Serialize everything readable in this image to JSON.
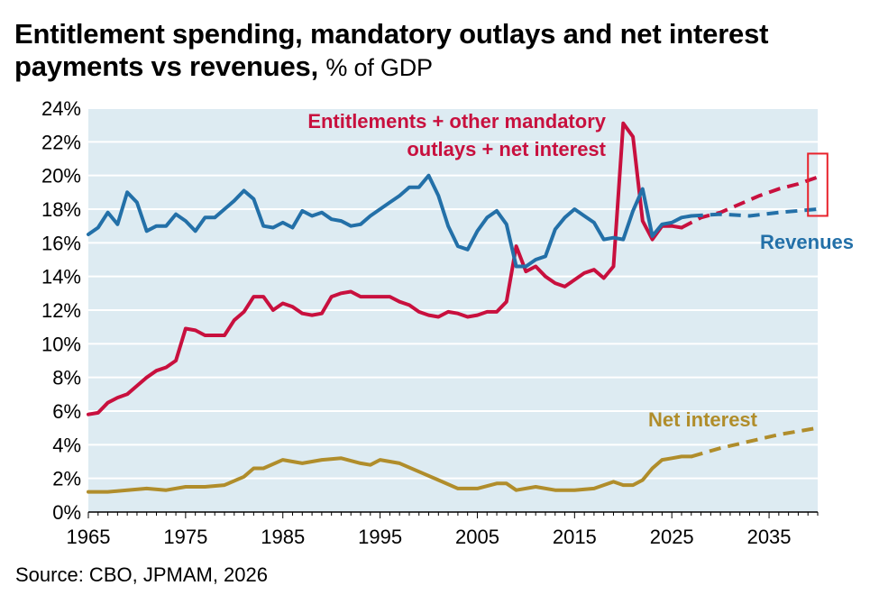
{
  "title": {
    "bold_part": "Entitlement spending, mandatory outlays and net interest payments vs revenues,",
    "unit_part": "% of GDP"
  },
  "source": "Source: CBO, JPMAM, 2026",
  "colors": {
    "plot_background": "#ddebf2",
    "gridline": "#ffffff",
    "entitlements": "#c8103e",
    "revenues": "#2370a8",
    "net_interest": "#b08d2b",
    "highlight_box": "#e8222b"
  },
  "chart_data": {
    "type": "line",
    "title": "Entitlement spending, mandatory outlays and net interest payments vs revenues, % of GDP",
    "xlim": [
      1965,
      2040
    ],
    "ylim": [
      0,
      24
    ],
    "x_ticks": [
      1965,
      1975,
      1985,
      1995,
      2005,
      2015,
      2025,
      2035
    ],
    "y_ticks": [
      "0%",
      "2%",
      "4%",
      "6%",
      "8%",
      "10%",
      "12%",
      "14%",
      "16%",
      "18%",
      "20%",
      "22%",
      "24%"
    ],
    "grid": true,
    "legend": "inline labels",
    "series": [
      {
        "name": "Entitlements + other mandatory outlays + net interest",
        "label_lines": [
          "Entitlements + other mandatory",
          "outlays + net interest"
        ],
        "color": "#c8103e",
        "x": [
          1965,
          1966,
          1967,
          1968,
          1969,
          1970,
          1971,
          1972,
          1973,
          1974,
          1975,
          1976,
          1977,
          1978,
          1979,
          1980,
          1981,
          1982,
          1983,
          1984,
          1985,
          1986,
          1987,
          1988,
          1989,
          1990,
          1991,
          1992,
          1993,
          1994,
          1995,
          1996,
          1997,
          1998,
          1999,
          2000,
          2001,
          2002,
          2003,
          2004,
          2005,
          2006,
          2007,
          2008,
          2009,
          2010,
          2011,
          2012,
          2013,
          2014,
          2015,
          2016,
          2017,
          2018,
          2019,
          2020,
          2021,
          2022,
          2023,
          2024,
          2025,
          2026
        ],
        "y": [
          5.8,
          5.9,
          6.5,
          6.8,
          7.0,
          7.5,
          8.0,
          8.4,
          8.6,
          9.0,
          10.9,
          10.8,
          10.5,
          10.5,
          10.5,
          11.4,
          11.9,
          12.8,
          12.8,
          12.0,
          12.4,
          12.2,
          11.8,
          11.7,
          11.8,
          12.8,
          13.0,
          13.1,
          12.8,
          12.8,
          12.8,
          12.8,
          12.5,
          12.3,
          11.9,
          11.7,
          11.6,
          11.9,
          11.8,
          11.6,
          11.7,
          11.9,
          11.9,
          12.5,
          15.8,
          14.3,
          14.6,
          14.0,
          13.6,
          13.4,
          13.8,
          14.2,
          14.4,
          13.9,
          14.6,
          23.1,
          22.3,
          17.3,
          16.2,
          17.0,
          17.0,
          16.9
        ],
        "projection": {
          "x": [
            2026,
            2028,
            2030,
            2032,
            2034,
            2036,
            2038,
            2040
          ],
          "y": [
            16.9,
            17.5,
            17.8,
            18.3,
            18.8,
            19.2,
            19.5,
            19.9
          ]
        }
      },
      {
        "name": "Revenues",
        "label_lines": [
          "Revenues"
        ],
        "color": "#2370a8",
        "x": [
          1965,
          1966,
          1967,
          1968,
          1969,
          1970,
          1971,
          1972,
          1973,
          1974,
          1975,
          1976,
          1977,
          1978,
          1979,
          1980,
          1981,
          1982,
          1983,
          1984,
          1985,
          1986,
          1987,
          1988,
          1989,
          1990,
          1991,
          1992,
          1993,
          1994,
          1995,
          1996,
          1997,
          1998,
          1999,
          2000,
          2001,
          2002,
          2003,
          2004,
          2005,
          2006,
          2007,
          2008,
          2009,
          2010,
          2011,
          2012,
          2013,
          2014,
          2015,
          2016,
          2017,
          2018,
          2019,
          2020,
          2021,
          2022,
          2023,
          2024,
          2025,
          2026,
          2027
        ],
        "y": [
          16.5,
          16.9,
          17.8,
          17.1,
          19.0,
          18.4,
          16.7,
          17.0,
          17.0,
          17.7,
          17.3,
          16.7,
          17.5,
          17.5,
          18.0,
          18.5,
          19.1,
          18.6,
          17.0,
          16.9,
          17.2,
          16.9,
          17.9,
          17.6,
          17.8,
          17.4,
          17.3,
          17.0,
          17.1,
          17.6,
          18.0,
          18.4,
          18.8,
          19.3,
          19.3,
          20.0,
          18.8,
          17.0,
          15.8,
          15.6,
          16.7,
          17.5,
          17.9,
          17.1,
          14.6,
          14.6,
          15.0,
          15.2,
          16.8,
          17.5,
          18.0,
          17.6,
          17.2,
          16.2,
          16.3,
          16.2,
          17.9,
          19.2,
          16.4,
          17.1,
          17.2,
          17.5,
          17.6
        ],
        "projection": {
          "x": [
            2027,
            2030,
            2033,
            2036,
            2040
          ],
          "y": [
            17.6,
            17.7,
            17.6,
            17.8,
            18.0
          ]
        }
      },
      {
        "name": "Net interest",
        "label_lines": [
          "Net interest"
        ],
        "color": "#b08d2b",
        "x": [
          1965,
          1967,
          1969,
          1971,
          1973,
          1975,
          1977,
          1979,
          1981,
          1982,
          1983,
          1985,
          1987,
          1989,
          1991,
          1993,
          1994,
          1995,
          1997,
          1999,
          2001,
          2003,
          2005,
          2007,
          2008,
          2009,
          2011,
          2013,
          2015,
          2017,
          2019,
          2020,
          2021,
          2022,
          2023,
          2024,
          2025,
          2026,
          2027
        ],
        "y": [
          1.2,
          1.2,
          1.3,
          1.4,
          1.3,
          1.5,
          1.5,
          1.6,
          2.1,
          2.6,
          2.6,
          3.1,
          2.9,
          3.1,
          3.2,
          2.9,
          2.8,
          3.1,
          2.9,
          2.4,
          1.9,
          1.4,
          1.4,
          1.7,
          1.7,
          1.3,
          1.5,
          1.3,
          1.3,
          1.4,
          1.8,
          1.6,
          1.6,
          1.9,
          2.6,
          3.1,
          3.2,
          3.3,
          3.3
        ],
        "projection": {
          "x": [
            2027,
            2030,
            2033,
            2036,
            2040
          ],
          "y": [
            3.3,
            3.8,
            4.2,
            4.6,
            5.0
          ]
        }
      }
    ],
    "annotations": [
      {
        "type": "box",
        "x_range": [
          2039.0,
          2041.0
        ],
        "y_range": [
          17.6,
          21.3
        ],
        "color": "#e8222b"
      }
    ]
  }
}
